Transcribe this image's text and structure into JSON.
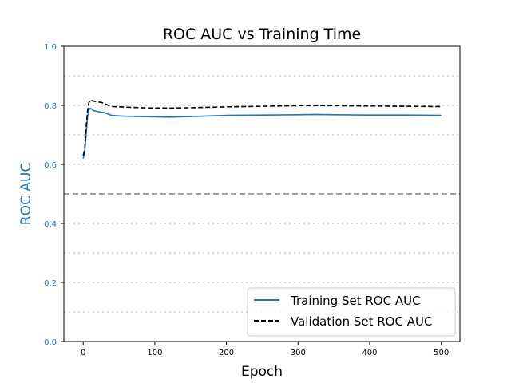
{
  "chart_data": {
    "type": "line",
    "title": "ROC AUC vs Training Time",
    "xlabel": "Epoch",
    "ylabel": "ROC AUC",
    "xlim": [
      -27,
      526
    ],
    "ylim": [
      0.0,
      1.0
    ],
    "x_ticks": [
      0,
      100,
      200,
      300,
      400,
      500
    ],
    "y_ticks": [
      0.0,
      0.2,
      0.4,
      0.6,
      0.8,
      1.0
    ],
    "y_tick_labels": [
      "0.0",
      "0.2",
      "0.4",
      "0.6",
      "0.8",
      "1.0"
    ],
    "grid": {
      "style": "dotted",
      "axis": "y",
      "values": [
        0.1,
        0.2,
        0.3,
        0.4,
        0.6,
        0.7,
        0.8,
        0.9
      ]
    },
    "reference_line": {
      "y": 0.5,
      "style": "dashed",
      "color": "#808080"
    },
    "ylabel_color": "#1f77b4",
    "legend_position": "lower-right",
    "series": [
      {
        "name": "Training Set ROC AUC",
        "style": "solid",
        "color": "#1f77b4",
        "points": [
          [
            0,
            0.62
          ],
          [
            2,
            0.64
          ],
          [
            4,
            0.7
          ],
          [
            6,
            0.76
          ],
          [
            8,
            0.785
          ],
          [
            10,
            0.79
          ],
          [
            15,
            0.782
          ],
          [
            20,
            0.779
          ],
          [
            25,
            0.777
          ],
          [
            30,
            0.775
          ],
          [
            35,
            0.77
          ],
          [
            40,
            0.766
          ],
          [
            50,
            0.764
          ],
          [
            60,
            0.763
          ],
          [
            80,
            0.762
          ],
          [
            100,
            0.761
          ],
          [
            120,
            0.76
          ],
          [
            150,
            0.762
          ],
          [
            200,
            0.766
          ],
          [
            250,
            0.767
          ],
          [
            300,
            0.768
          ],
          [
            325,
            0.769
          ],
          [
            350,
            0.768
          ],
          [
            400,
            0.767
          ],
          [
            450,
            0.767
          ],
          [
            500,
            0.766
          ]
        ]
      },
      {
        "name": "Validation Set ROC AUC",
        "style": "dashed",
        "color": "#000000",
        "points": [
          [
            0,
            0.63
          ],
          [
            2,
            0.65
          ],
          [
            4,
            0.72
          ],
          [
            6,
            0.78
          ],
          [
            8,
            0.81
          ],
          [
            10,
            0.818
          ],
          [
            15,
            0.814
          ],
          [
            20,
            0.812
          ],
          [
            25,
            0.81
          ],
          [
            30,
            0.806
          ],
          [
            35,
            0.8
          ],
          [
            40,
            0.796
          ],
          [
            60,
            0.794
          ],
          [
            80,
            0.792
          ],
          [
            100,
            0.791
          ],
          [
            120,
            0.791
          ],
          [
            150,
            0.792
          ],
          [
            200,
            0.795
          ],
          [
            250,
            0.797
          ],
          [
            300,
            0.799
          ],
          [
            350,
            0.799
          ],
          [
            400,
            0.798
          ],
          [
            450,
            0.797
          ],
          [
            500,
            0.796
          ]
        ]
      }
    ]
  }
}
